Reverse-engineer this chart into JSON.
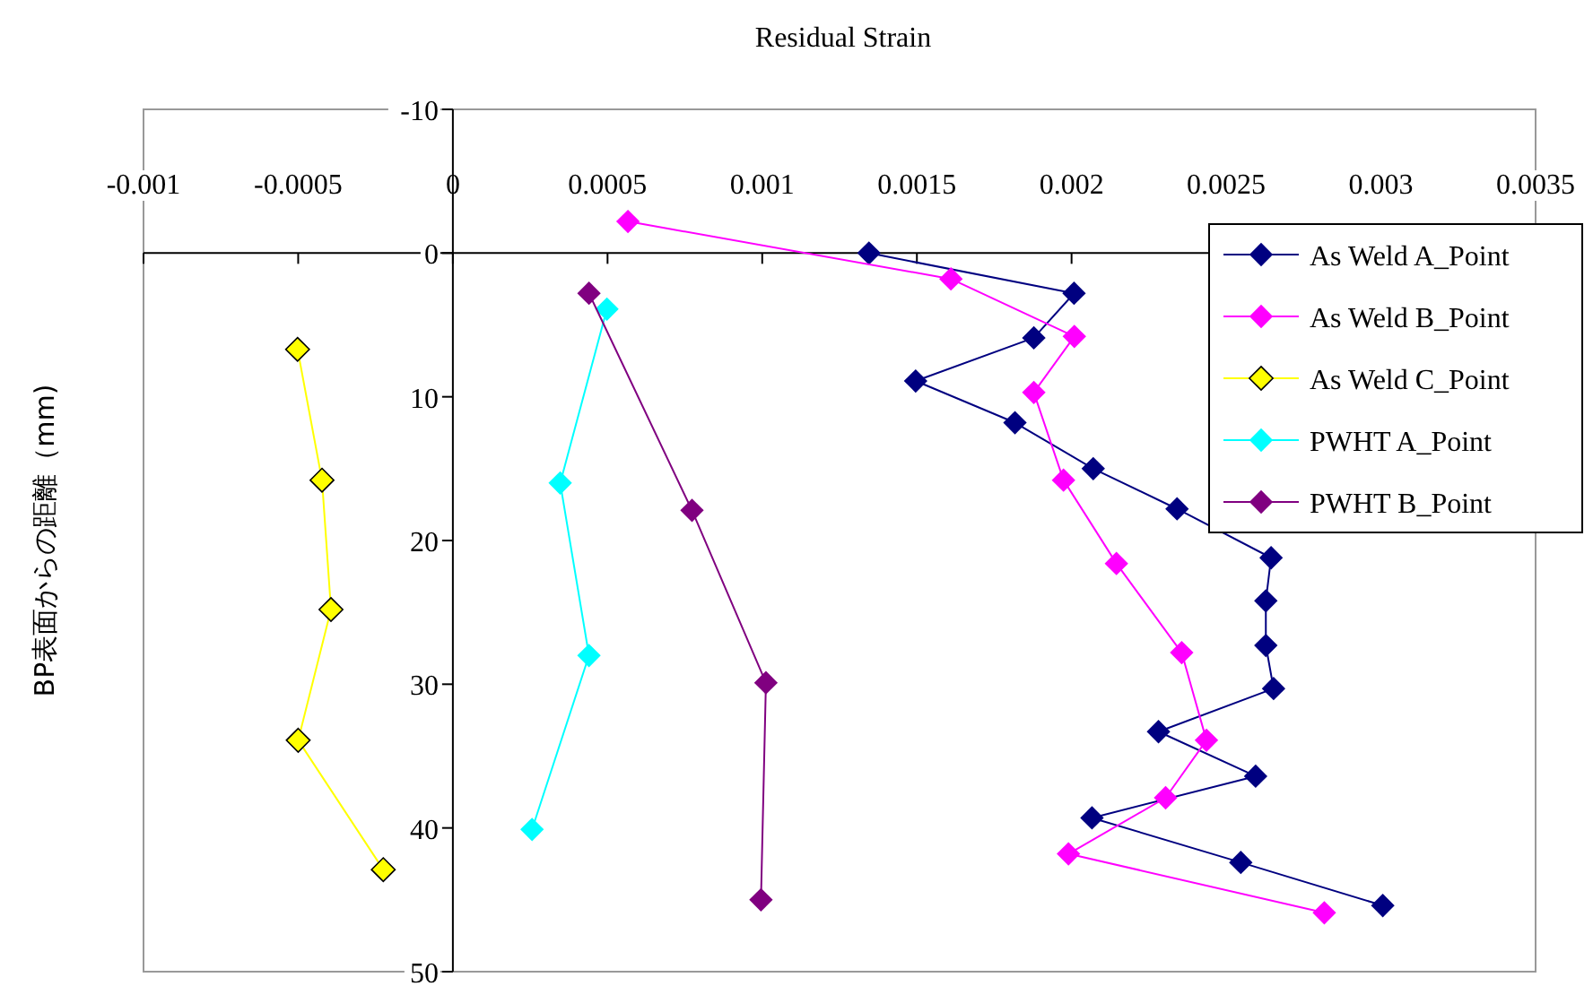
{
  "chart_data": {
    "type": "line",
    "xlabel": "Residual Strain",
    "ylabel": "BP表面からの距離（mm)",
    "xlim": [
      -0.001,
      0.0035
    ],
    "xticks": [
      -0.001,
      -0.0005,
      0,
      0.0005,
      0.001,
      0.0015,
      0.002,
      0.0025,
      0.003,
      0.0035
    ],
    "ylim": [
      50,
      -10
    ],
    "yticks": [
      -10,
      0,
      10,
      20,
      30,
      40,
      50
    ],
    "grid": false,
    "legend": "top right",
    "marker": "diamond",
    "line_style": "solid",
    "series": [
      {
        "name": "As Weld A_Point",
        "color": "#000080",
        "x": [
          0.001345,
          0.002008,
          0.001878,
          0.001496,
          0.001817,
          0.00207,
          0.002341,
          0.002645,
          0.002628,
          0.002628,
          0.002653,
          0.002281,
          0.002595,
          0.002066,
          0.002547,
          0.003006
        ],
        "values": [
          0.0,
          2.8,
          5.9,
          8.9,
          11.8,
          15.0,
          17.8,
          21.2,
          24.2,
          27.3,
          30.3,
          33.3,
          36.4,
          39.3,
          42.4,
          45.4
        ]
      },
      {
        "name": "As Weld B_Point",
        "color": "#ff00ff",
        "x": [
          0.000566,
          0.00161,
          0.002009,
          0.001878,
          0.001974,
          0.002145,
          0.002356,
          0.002436,
          0.002304,
          0.00199,
          0.002817
        ],
        "values": [
          -2.2,
          1.8,
          5.8,
          9.7,
          15.8,
          21.6,
          27.8,
          33.9,
          37.9,
          41.8,
          45.9
        ]
      },
      {
        "name": "As Weld C_Point",
        "color": "#ffff00",
        "x": [
          -0.000502,
          -0.000423,
          -0.000394,
          -0.0005,
          -0.000225
        ],
        "values": [
          6.7,
          15.8,
          24.8,
          33.9,
          42.9
        ]
      },
      {
        "name": "PWHT A_Point",
        "color": "#00ffff",
        "x": [
          0.000498,
          0.000347,
          0.00044,
          0.000256
        ],
        "values": [
          3.9,
          16.0,
          28.0,
          40.1
        ]
      },
      {
        "name": "PWHT B_Point",
        "color": "#800080",
        "x": [
          0.00044,
          0.000773,
          0.001012,
          0.000996
        ],
        "values": [
          2.8,
          17.9,
          29.9,
          45.0
        ]
      }
    ]
  }
}
